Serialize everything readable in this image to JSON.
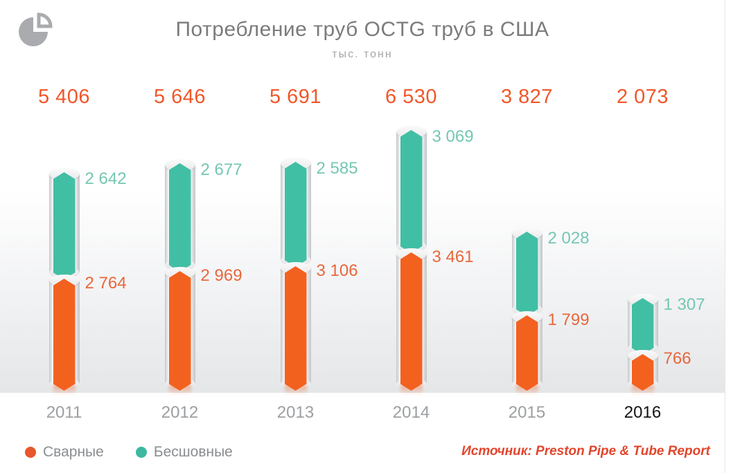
{
  "header": {
    "title": "Потребление труб OCTG труб в США",
    "subtitle": "тыс. тонн"
  },
  "logo": {
    "name": "pie-chart-logo",
    "color": "#a9abae"
  },
  "chart_data": {
    "type": "bar",
    "stacked": true,
    "orientation": "vertical",
    "title": "Потребление труб OCTG труб в США",
    "unit": "тыс. тонн",
    "categories": [
      "2011",
      "2012",
      "2013",
      "2014",
      "2015",
      "2016"
    ],
    "highlight_category": "2016",
    "series": [
      {
        "name": "Сварные",
        "color": "#f3611f",
        "values": [
          2764,
          2969,
          3106,
          3461,
          1799,
          766
        ]
      },
      {
        "name": "Бесшовные",
        "color": "#41bfa4",
        "values": [
          2642,
          2677,
          2585,
          3069,
          2028,
          1307
        ]
      }
    ],
    "totals": [
      5406,
      5646,
      5691,
      6530,
      3827,
      2073
    ],
    "value_labels": {
      "Сварные": [
        "2 764",
        "2 969",
        "3 106",
        "3 461",
        "1 799",
        "766"
      ],
      "Бесшовные": [
        "2 642",
        "2 677",
        "2 585",
        "3 069",
        "2 028",
        "1 307"
      ]
    },
    "total_labels": [
      "5 406",
      "5 646",
      "5 691",
      "6 530",
      "3 827",
      "2 073"
    ],
    "gridlines": false,
    "axes_shown": false,
    "legend_position": "bottom-left"
  },
  "legend": {
    "items": [
      {
        "label": "Сварные",
        "color": "#e8562b"
      },
      {
        "label": "Бесшовные",
        "color": "#3cb9a0"
      }
    ]
  },
  "source": {
    "text": "Источник: Preston Pipe & Tube Report"
  },
  "colors": {
    "total_label": "#f0572a",
    "welded_value_label": "#e8673c",
    "seamless_value_label": "#74c7b3",
    "year_label": "#9c9fa2",
    "year_highlight": "#141414",
    "title": "#7b7b7b",
    "source": "#e2452c"
  }
}
